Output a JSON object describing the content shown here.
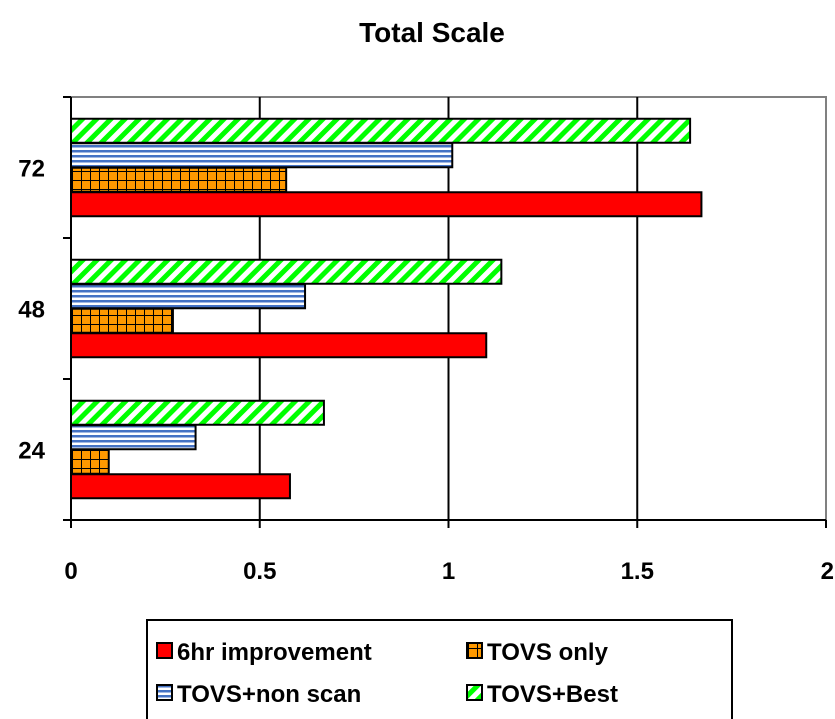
{
  "chart_data": {
    "type": "bar",
    "orientation": "horizontal",
    "title": "Total Scale",
    "xlabel": "",
    "ylabel": "",
    "categories": [
      "24",
      "48",
      "72"
    ],
    "xlim": [
      0,
      2
    ],
    "x_ticks": [
      "0",
      "0.5",
      "1",
      "1.5",
      "2"
    ],
    "grid": true,
    "legend_position": "bottom",
    "series": [
      {
        "name": "6hr improvement",
        "values": [
          0.58,
          1.1,
          1.67
        ],
        "color": "#ff0000",
        "pattern": "solid"
      },
      {
        "name": "TOVS only",
        "values": [
          0.1,
          0.27,
          0.57
        ],
        "color": "#ff9900",
        "pattern": "grid"
      },
      {
        "name": "TOVS+non scan",
        "values": [
          0.33,
          0.62,
          1.01
        ],
        "color": "#4472c4",
        "pattern": "horizontal-lines"
      },
      {
        "name": "TOVS+Best",
        "values": [
          0.67,
          1.14,
          1.64
        ],
        "color": "#00ff00",
        "pattern": "diagonal-stripes"
      }
    ]
  }
}
